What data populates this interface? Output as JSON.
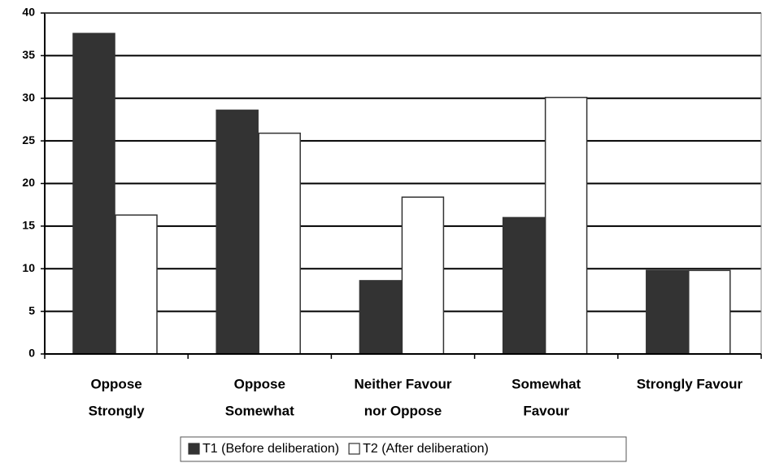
{
  "chart_data": {
    "type": "bar",
    "categories": [
      [
        "Oppose",
        "Strongly"
      ],
      [
        "Oppose",
        "Somewhat"
      ],
      [
        "Neither Favour",
        "nor Oppose"
      ],
      [
        "Somewhat",
        "Favour"
      ],
      [
        "Strongly Favour"
      ]
    ],
    "series": [
      {
        "name": "T1 (Before deliberation)",
        "color": "#333333",
        "values": [
          37.6,
          28.6,
          8.6,
          16,
          9.8
        ]
      },
      {
        "name": "T2 (After deliberation)",
        "color": "#ffffff",
        "values": [
          16.3,
          25.9,
          18.4,
          30.1,
          9.8
        ]
      }
    ],
    "ylim": [
      0,
      40
    ],
    "yticks": [
      0,
      5,
      10,
      15,
      20,
      25,
      30,
      35,
      40
    ],
    "grid": true,
    "legend": "bottom"
  }
}
